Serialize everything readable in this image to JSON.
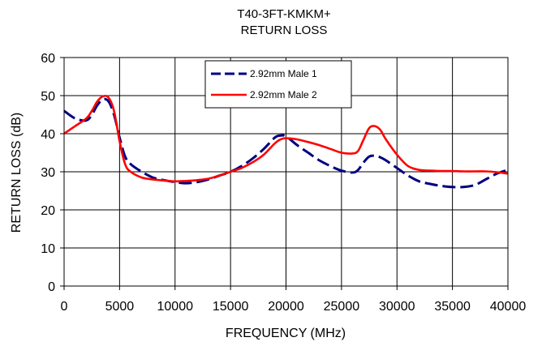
{
  "chart_data": {
    "type": "line",
    "title": "T40-3FT-KMKM+",
    "subtitle": "RETURN LOSS",
    "xlabel": "FREQUENCY (MHz)",
    "ylabel": "RETURN LOSS (dB)",
    "xlim": [
      0,
      40000
    ],
    "ylim": [
      0,
      60
    ],
    "x_ticks": [
      0,
      5000,
      10000,
      15000,
      20000,
      25000,
      30000,
      35000,
      40000
    ],
    "y_ticks": [
      0,
      10,
      20,
      30,
      40,
      50,
      60
    ],
    "grid": true,
    "legend_position": "top-center",
    "series": [
      {
        "name": "2.92mm Male 1",
        "color": "#000080",
        "style": "dashed",
        "x": [
          0,
          1000,
          2000,
          2500,
          3000,
          3500,
          4000,
          4500,
          5000,
          5500,
          6000,
          7000,
          8000,
          9000,
          10000,
          11000,
          12000,
          13000,
          14000,
          15000,
          16000,
          17000,
          18000,
          19000,
          19500,
          20000,
          21000,
          22000,
          23000,
          24000,
          25000,
          26000,
          26500,
          27000,
          27500,
          28000,
          28500,
          29000,
          30000,
          31000,
          32000,
          33000,
          34000,
          35000,
          36000,
          37000,
          38000,
          39000,
          40000
        ],
        "values": [
          46,
          44,
          43.5,
          45,
          47.5,
          49,
          48.5,
          45,
          39,
          34,
          32,
          30,
          28.5,
          27.8,
          27.3,
          27,
          27.3,
          28,
          29,
          30,
          31.5,
          33.5,
          36,
          39,
          39.5,
          39.3,
          37,
          35,
          33,
          31.5,
          30.3,
          29.8,
          30.5,
          32.5,
          34,
          34.2,
          33.8,
          33,
          31,
          29,
          27.5,
          26.8,
          26.3,
          26,
          26,
          26.5,
          28,
          29.5,
          30.5
        ]
      },
      {
        "name": "2.92mm Male 2",
        "color": "#ff0000",
        "style": "solid",
        "x": [
          0,
          1000,
          2000,
          2500,
          3000,
          3500,
          4000,
          4500,
          5000,
          5500,
          6000,
          7000,
          8000,
          9000,
          10000,
          11000,
          12000,
          13000,
          14000,
          15000,
          16000,
          17000,
          18000,
          19000,
          19500,
          20000,
          21000,
          22000,
          23000,
          24000,
          25000,
          26000,
          26500,
          27000,
          27500,
          28000,
          28500,
          29000,
          30000,
          31000,
          32000,
          33000,
          34000,
          35000,
          36000,
          37000,
          38000,
          39000,
          40000
        ],
        "values": [
          40,
          42,
          44,
          46,
          48.5,
          49.8,
          49.5,
          46,
          38,
          32,
          30,
          28.5,
          28,
          27.7,
          27.5,
          27.6,
          27.8,
          28.2,
          29,
          30,
          31,
          32.5,
          34.5,
          37.5,
          38.5,
          38.8,
          38.5,
          37.8,
          37,
          36,
          35,
          34.8,
          35.5,
          38.5,
          41.5,
          42,
          41,
          38.5,
          34.5,
          31.5,
          30.5,
          30.3,
          30.2,
          30.2,
          30.1,
          30.1,
          30.1,
          29.9,
          29.5
        ]
      }
    ]
  }
}
